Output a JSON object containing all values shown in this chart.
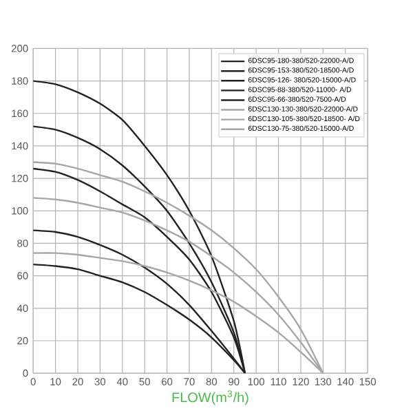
{
  "chart_data": {
    "type": "line",
    "xlabel": "FLOW(m$^{3}$/h)",
    "xlim": [
      0,
      150
    ],
    "ylim": [
      0,
      200
    ],
    "xticks": [
      0,
      10,
      20,
      30,
      40,
      50,
      60,
      70,
      80,
      90,
      100,
      110,
      120,
      130,
      140,
      150
    ],
    "yticks": [
      0,
      20,
      40,
      60,
      80,
      100,
      120,
      140,
      160,
      180,
      200
    ],
    "grid": true,
    "legend": "top right",
    "marker": "none",
    "line_style": "solid",
    "x": [
      0,
      10,
      20,
      30,
      40,
      50,
      60,
      70,
      80,
      90,
      95
    ],
    "series": [
      {
        "name": "6DSC95-180-380/520-22000-A/D",
        "color": "#222222",
        "values": [
          180,
          178,
          173,
          166,
          156,
          140,
          122,
          100,
          72,
          32,
          0
        ]
      },
      {
        "name": "6DSC95-153-380/520-18500-A/D",
        "color": "#222222",
        "values": [
          152,
          150,
          145,
          138,
          128,
          115,
          100,
          80,
          56,
          25,
          0
        ]
      },
      {
        "name": "6DSC95-126- 380/520-15000-A/D",
        "color": "#222222",
        "values": [
          126,
          124,
          119,
          112,
          104,
          96,
          84,
          70,
          50,
          22,
          0
        ]
      },
      {
        "name": "6DSC95-88-380/520-11000- A/D",
        "color": "#222222",
        "values": [
          88,
          87,
          84,
          79,
          73,
          65,
          55,
          42,
          26,
          9,
          0
        ]
      },
      {
        "name": "6DSC95-66-380/520-7500-A/D",
        "color": "#222222",
        "values": [
          67,
          66,
          64,
          60,
          56,
          50,
          42,
          33,
          22,
          8,
          0
        ]
      },
      {
        "name": "6DSC130-130-380/520-22000-A/D",
        "color": "#a6a6a6",
        "x": [
          0,
          10,
          20,
          30,
          40,
          50,
          60,
          70,
          80,
          90,
          100,
          110,
          120,
          130
        ],
        "values": [
          130,
          129,
          126,
          122,
          118,
          112,
          105,
          97,
          88,
          77,
          64,
          47,
          27,
          0
        ]
      },
      {
        "name": "6DSC130-105-380/520-18500- A/D",
        "color": "#a6a6a6",
        "x": [
          0,
          10,
          20,
          30,
          40,
          50,
          60,
          70,
          80,
          90,
          100,
          110,
          120,
          130
        ],
        "values": [
          108,
          107,
          105,
          102,
          99,
          94,
          88,
          81,
          72,
          62,
          50,
          36,
          19,
          0
        ]
      },
      {
        "name": "6DSC130-75-380/520-15000-A/D",
        "color": "#a6a6a6",
        "x": [
          0,
          10,
          20,
          30,
          40,
          50,
          60,
          70,
          80,
          90,
          100,
          110,
          120,
          130
        ],
        "values": [
          74,
          74,
          73,
          71,
          69,
          66,
          62,
          57,
          51,
          44,
          35,
          25,
          13,
          0
        ]
      }
    ]
  }
}
